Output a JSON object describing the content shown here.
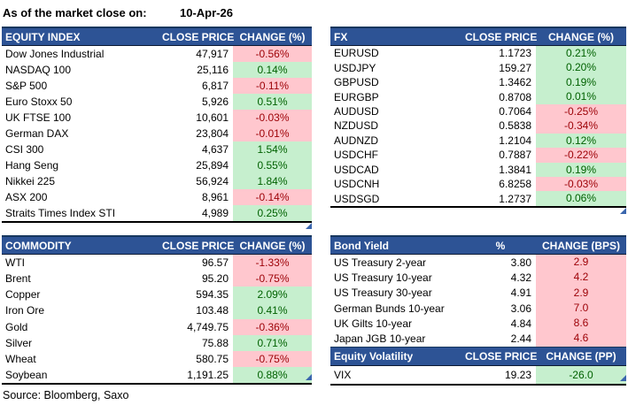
{
  "meta": {
    "as_of_label": "As of the market close on:",
    "as_of_date": "10-Apr-26",
    "source": "Source: Bloomberg, Saxo"
  },
  "colors": {
    "header_bg": "#2D5395",
    "header_text": "#FFFFFF",
    "positive_bg": "#C6EFCE",
    "positive_text": "#006100",
    "negative_bg": "#FFC7CE",
    "negative_text": "#9C0006"
  },
  "tables": {
    "equity_index": {
      "headers": [
        "EQUITY INDEX",
        "CLOSE PRICE",
        "CHANGE (%)"
      ],
      "rows": [
        {
          "name": "Dow Jones Industrial",
          "price": "47,917",
          "change": "-0.56%",
          "tone": "red"
        },
        {
          "name": "NASDAQ 100",
          "price": "25,116",
          "change": "0.14%",
          "tone": "green"
        },
        {
          "name": "S&P 500",
          "price": "6,817",
          "change": "-0.11%",
          "tone": "red"
        },
        {
          "name": "Euro Stoxx 50",
          "price": "5,926",
          "change": "0.51%",
          "tone": "green"
        },
        {
          "name": "UK FTSE 100",
          "price": "10,601",
          "change": "-0.03%",
          "tone": "red"
        },
        {
          "name": "German DAX",
          "price": "23,804",
          "change": "-0.01%",
          "tone": "red"
        },
        {
          "name": "CSI 300",
          "price": "4,637",
          "change": "1.54%",
          "tone": "green"
        },
        {
          "name": "Hang Seng",
          "price": "25,894",
          "change": "0.55%",
          "tone": "green"
        },
        {
          "name": "Nikkei 225",
          "price": "56,924",
          "change": "1.84%",
          "tone": "green"
        },
        {
          "name": "ASX 200",
          "price": "8,961",
          "change": "-0.14%",
          "tone": "red"
        },
        {
          "name": "Straits Times Index STI",
          "price": "4,989",
          "change": "0.25%",
          "tone": "green"
        }
      ]
    },
    "fx": {
      "headers": [
        "FX",
        "CLOSE PRICE",
        "CHANGE (%)"
      ],
      "rows": [
        {
          "name": "EURUSD",
          "price": "1.1723",
          "change": "0.21%",
          "tone": "green"
        },
        {
          "name": "USDJPY",
          "price": "159.27",
          "change": "0.20%",
          "tone": "green"
        },
        {
          "name": "GBPUSD",
          "price": "1.3462",
          "change": "0.19%",
          "tone": "green"
        },
        {
          "name": "EURGBP",
          "price": "0.8708",
          "change": "0.01%",
          "tone": "green"
        },
        {
          "name": "AUDUSD",
          "price": "0.7064",
          "change": "-0.25%",
          "tone": "red"
        },
        {
          "name": "NZDUSD",
          "price": "0.5838",
          "change": "-0.34%",
          "tone": "red"
        },
        {
          "name": "AUDNZD",
          "price": "1.2104",
          "change": "0.12%",
          "tone": "green"
        },
        {
          "name": "USDCHF",
          "price": "0.7887",
          "change": "-0.22%",
          "tone": "red"
        },
        {
          "name": "USDCAD",
          "price": "1.3841",
          "change": "0.19%",
          "tone": "green"
        },
        {
          "name": "USDCNH",
          "price": "6.8258",
          "change": "-0.03%",
          "tone": "red"
        },
        {
          "name": "USDSGD",
          "price": "1.2737",
          "change": "0.06%",
          "tone": "green"
        }
      ]
    },
    "commodity": {
      "headers": [
        "COMMODITY",
        "CLOSE PRICE",
        "CHANGE (%)"
      ],
      "rows": [
        {
          "name": "WTI",
          "price": "96.57",
          "change": "-1.33%",
          "tone": "red"
        },
        {
          "name": "Brent",
          "price": "95.20",
          "change": "-0.75%",
          "tone": "red"
        },
        {
          "name": "Copper",
          "price": "594.35",
          "change": "2.09%",
          "tone": "green"
        },
        {
          "name": "Iron Ore",
          "price": "103.48",
          "change": "0.41%",
          "tone": "green"
        },
        {
          "name": "Gold",
          "price": "4,749.75",
          "change": "-0.36%",
          "tone": "red"
        },
        {
          "name": "Silver",
          "price": "75.88",
          "change": "0.71%",
          "tone": "green"
        },
        {
          "name": "Wheat",
          "price": "580.75",
          "change": "-0.75%",
          "tone": "red"
        },
        {
          "name": "Soybean",
          "price": "1,191.25",
          "change": "0.88%",
          "tone": "green"
        }
      ]
    },
    "bond_yield": {
      "headers": [
        "Bond Yield",
        "%",
        "CHANGE (BPS)"
      ],
      "rows": [
        {
          "name": "US Treasury 2-year",
          "price": "3.80",
          "change": "2.9",
          "tone": "red"
        },
        {
          "name": "US Treasury 10-year",
          "price": "4.32",
          "change": "4.2",
          "tone": "red"
        },
        {
          "name": "US Treasury 30-year",
          "price": "4.91",
          "change": "2.9",
          "tone": "red"
        },
        {
          "name": "German Bunds 10-year",
          "price": "3.06",
          "change": "7.0",
          "tone": "red"
        },
        {
          "name": "UK Gilts 10-year",
          "price": "4.84",
          "change": "8.6",
          "tone": "red"
        },
        {
          "name": "Japan JGB 10-year",
          "price": "2.44",
          "change": "4.6",
          "tone": "red"
        }
      ]
    },
    "equity_volatility": {
      "headers": [
        "Equity Volatility",
        "CLOSE PRICE",
        "CHANGE (PP)"
      ],
      "rows": [
        {
          "name": "VIX",
          "price": "19.23",
          "change": "-26.0",
          "tone": "green"
        }
      ]
    }
  }
}
